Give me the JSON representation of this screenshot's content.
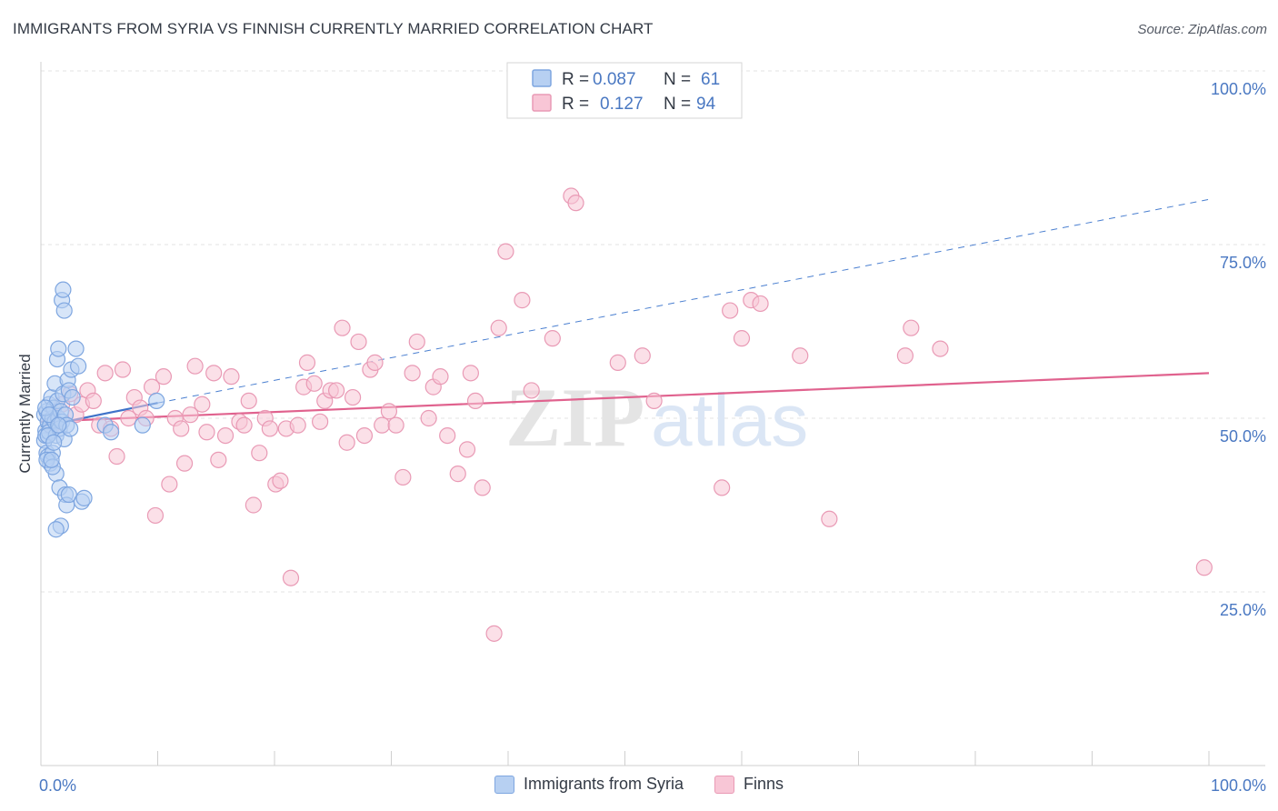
{
  "chart_data": {
    "type": "scatter",
    "title": "IMMIGRANTS FROM SYRIA VS FINNISH CURRENTLY MARRIED CORRELATION CHART",
    "source": "Source: ZipAtlas.com",
    "xlabel": "",
    "ylabel": "Currently Married",
    "xlim": [
      0,
      100
    ],
    "ylim": [
      0,
      100
    ],
    "x_tick_labels": [
      "0.0%",
      "100.0%"
    ],
    "y_ticks": [
      25,
      50,
      75,
      100
    ],
    "y_tick_labels": [
      "25.0%",
      "50.0%",
      "75.0%",
      "100.0%"
    ],
    "grid": true,
    "watermark": "ZIPatlas",
    "legend": {
      "position": "top-center",
      "r_label": "R =",
      "n_label": "N =",
      "entries": [
        {
          "name": "Immigrants from Syria",
          "r": "0.087",
          "n": "61",
          "color": "#7ea6e0"
        },
        {
          "name": "Finns",
          "r": "0.127",
          "n": "94",
          "color": "#e99ab5"
        }
      ]
    },
    "series": [
      {
        "name": "Immigrants from Syria",
        "color": "#7ea6e0",
        "fill": "#b7d0f2",
        "trend": {
          "x": [
            0,
            10
          ],
          "y": [
            48.8,
            52.2
          ],
          "extended": {
            "x": [
              10,
              100
            ],
            "y": [
              52.2,
              81.5
            ]
          }
        },
        "points": [
          [
            0.3,
            50.5
          ],
          [
            0.4,
            48.2
          ],
          [
            0.5,
            51.0
          ],
          [
            0.3,
            46.8
          ],
          [
            0.6,
            49.5
          ],
          [
            0.4,
            47.5
          ],
          [
            0.5,
            45.0
          ],
          [
            0.7,
            52.0
          ],
          [
            0.8,
            49.0
          ],
          [
            0.6,
            44.5
          ],
          [
            0.9,
            53.0
          ],
          [
            1.0,
            50.0
          ],
          [
            0.7,
            48.0
          ],
          [
            1.1,
            51.5
          ],
          [
            1.2,
            49.5
          ],
          [
            0.8,
            43.5
          ],
          [
            1.3,
            47.5
          ],
          [
            1.0,
            45.0
          ],
          [
            1.4,
            52.5
          ],
          [
            1.5,
            50.0
          ],
          [
            1.2,
            55.0
          ],
          [
            1.6,
            48.5
          ],
          [
            1.3,
            42.0
          ],
          [
            1.7,
            51.0
          ],
          [
            1.8,
            49.5
          ],
          [
            1.4,
            58.5
          ],
          [
            1.9,
            53.5
          ],
          [
            2.0,
            47.0
          ],
          [
            1.5,
            60.0
          ],
          [
            2.1,
            50.5
          ],
          [
            1.6,
            40.0
          ],
          [
            2.2,
            49.0
          ],
          [
            1.8,
            67.0
          ],
          [
            1.9,
            68.5
          ],
          [
            2.0,
            65.5
          ],
          [
            2.3,
            55.5
          ],
          [
            2.4,
            54.0
          ],
          [
            2.5,
            48.5
          ],
          [
            2.1,
            39.0
          ],
          [
            2.6,
            57.0
          ],
          [
            2.2,
            37.5
          ],
          [
            2.7,
            53.0
          ],
          [
            3.0,
            60.0
          ],
          [
            3.2,
            57.5
          ],
          [
            2.4,
            39.0
          ],
          [
            3.5,
            38.0
          ],
          [
            3.7,
            38.5
          ],
          [
            5.5,
            49.0
          ],
          [
            6.0,
            48.0
          ],
          [
            8.7,
            49.0
          ],
          [
            9.9,
            52.5
          ],
          [
            0.5,
            44.0
          ],
          [
            1.0,
            43.0
          ],
          [
            1.7,
            34.5
          ],
          [
            1.3,
            34.0
          ],
          [
            0.9,
            44.0
          ],
          [
            0.6,
            47.5
          ],
          [
            1.1,
            46.5
          ],
          [
            0.4,
            51.5
          ],
          [
            0.7,
            50.5
          ],
          [
            1.5,
            49.0
          ]
        ]
      },
      {
        "name": "Finns",
        "color": "#e99ab5",
        "fill": "#f8c6d6",
        "trend": {
          "x": [
            0,
            100
          ],
          "y": [
            49.5,
            56.5
          ]
        },
        "points": [
          [
            1.0,
            49.0
          ],
          [
            1.8,
            52.0
          ],
          [
            2.5,
            53.5
          ],
          [
            3.0,
            50.5
          ],
          [
            3.5,
            52.0
          ],
          [
            4.0,
            54.0
          ],
          [
            4.5,
            52.5
          ],
          [
            5.0,
            49.0
          ],
          [
            5.5,
            56.5
          ],
          [
            6.5,
            44.5
          ],
          [
            7.0,
            57.0
          ],
          [
            7.5,
            50.0
          ],
          [
            8.0,
            53.0
          ],
          [
            8.5,
            51.5
          ],
          [
            9.0,
            50.0
          ],
          [
            9.5,
            54.5
          ],
          [
            9.8,
            36.0
          ],
          [
            10.5,
            56.0
          ],
          [
            11.0,
            40.5
          ],
          [
            11.5,
            50.0
          ],
          [
            12.0,
            48.5
          ],
          [
            12.3,
            43.5
          ],
          [
            12.8,
            50.5
          ],
          [
            13.2,
            57.5
          ],
          [
            13.8,
            52.0
          ],
          [
            14.2,
            48.0
          ],
          [
            14.8,
            56.5
          ],
          [
            15.2,
            44.0
          ],
          [
            15.8,
            47.5
          ],
          [
            16.3,
            56.0
          ],
          [
            17.0,
            49.5
          ],
          [
            17.4,
            49.0
          ],
          [
            17.8,
            52.5
          ],
          [
            18.2,
            37.5
          ],
          [
            18.7,
            45.0
          ],
          [
            19.2,
            50.0
          ],
          [
            19.6,
            48.5
          ],
          [
            20.1,
            40.5
          ],
          [
            20.5,
            41.0
          ],
          [
            21.0,
            48.5
          ],
          [
            21.4,
            27.0
          ],
          [
            22.0,
            49.0
          ],
          [
            22.5,
            54.5
          ],
          [
            22.8,
            58.0
          ],
          [
            23.4,
            55.0
          ],
          [
            23.9,
            49.5
          ],
          [
            24.3,
            52.5
          ],
          [
            24.8,
            54.0
          ],
          [
            25.3,
            54.0
          ],
          [
            25.8,
            63.0
          ],
          [
            26.2,
            46.5
          ],
          [
            26.7,
            53.0
          ],
          [
            27.2,
            61.0
          ],
          [
            27.7,
            47.5
          ],
          [
            28.2,
            57.0
          ],
          [
            28.6,
            58.0
          ],
          [
            29.2,
            49.0
          ],
          [
            29.8,
            51.0
          ],
          [
            30.4,
            49.0
          ],
          [
            31.0,
            41.5
          ],
          [
            31.8,
            56.5
          ],
          [
            32.2,
            61.0
          ],
          [
            33.2,
            50.0
          ],
          [
            33.6,
            54.5
          ],
          [
            34.2,
            56.0
          ],
          [
            34.8,
            47.5
          ],
          [
            35.7,
            42.0
          ],
          [
            36.5,
            45.5
          ],
          [
            36.8,
            56.5
          ],
          [
            37.2,
            52.5
          ],
          [
            37.8,
            40.0
          ],
          [
            38.8,
            19.0
          ],
          [
            39.2,
            63.0
          ],
          [
            39.8,
            74.0
          ],
          [
            41.2,
            67.0
          ],
          [
            42.0,
            54.0
          ],
          [
            43.8,
            61.5
          ],
          [
            45.4,
            82.0
          ],
          [
            45.8,
            81.0
          ],
          [
            49.4,
            58.0
          ],
          [
            51.5,
            59.0
          ],
          [
            52.5,
            52.5
          ],
          [
            58.3,
            40.0
          ],
          [
            59.0,
            65.5
          ],
          [
            60.0,
            61.5
          ],
          [
            60.8,
            67.0
          ],
          [
            61.6,
            66.5
          ],
          [
            65.0,
            59.0
          ],
          [
            67.5,
            35.5
          ],
          [
            74.0,
            59.0
          ],
          [
            74.5,
            63.0
          ],
          [
            99.6,
            28.5
          ],
          [
            77.0,
            60.0
          ],
          [
            6.0,
            48.5
          ]
        ]
      }
    ]
  }
}
